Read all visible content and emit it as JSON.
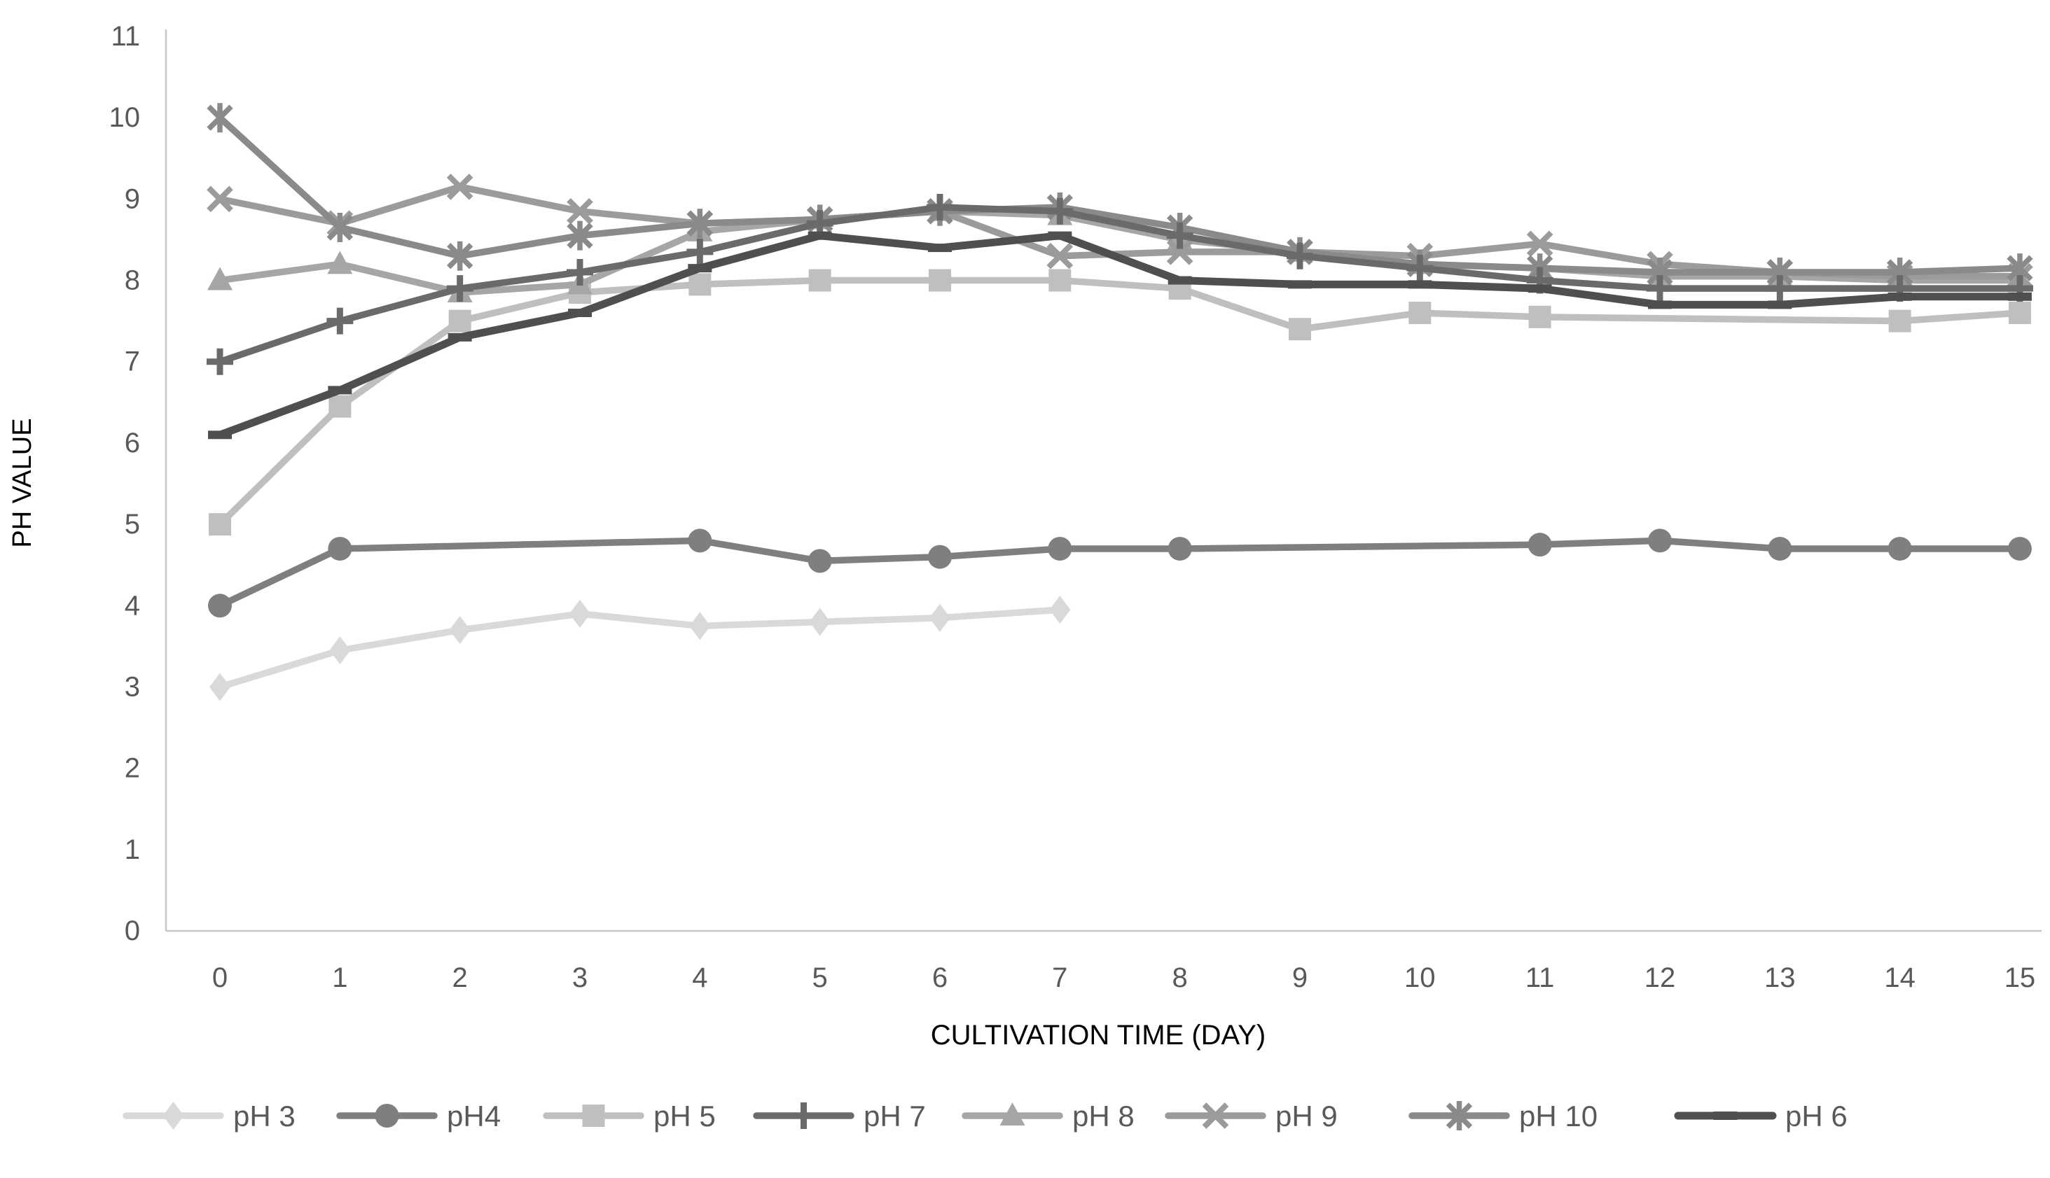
{
  "chart": {
    "text_color": "#595959",
    "axis_line_color": "#c6c6c6",
    "background": "#ffffff"
  },
  "chart_data": {
    "type": "line",
    "title": "",
    "xlabel": "CULTIVATION TIME (DAY)",
    "ylabel": "PH VALUE",
    "x": [
      0,
      1,
      2,
      3,
      4,
      5,
      6,
      7,
      8,
      9,
      10,
      11,
      12,
      13,
      14,
      15
    ],
    "x_tick_labels": [
      "0",
      "1",
      "2",
      "3",
      "4",
      "5",
      "6",
      "7",
      "8",
      "9",
      "10",
      "11",
      "12",
      "13",
      "14",
      "15"
    ],
    "y_ticks": [
      0,
      1,
      2,
      3,
      4,
      5,
      6,
      7,
      8,
      9,
      10,
      11
    ],
    "y_tick_labels": [
      "0",
      "1",
      "2",
      "3",
      "4",
      "5",
      "6",
      "7",
      "8",
      "9",
      "10",
      "11"
    ],
    "ylim": [
      0,
      11
    ],
    "xlim": [
      0,
      15
    ],
    "grid": false,
    "legend_position": "bottom",
    "series": [
      {
        "name": "pH 3",
        "marker": "diamond",
        "color": "#d9d9d9",
        "values": [
          3.0,
          3.45,
          3.7,
          3.9,
          3.75,
          3.8,
          3.85,
          3.95,
          null,
          null,
          null,
          null,
          null,
          null,
          null,
          null
        ]
      },
      {
        "name": "pH4",
        "marker": "circle",
        "color": "#7f7f7f",
        "values": [
          4.0,
          4.7,
          null,
          null,
          4.8,
          4.55,
          4.6,
          4.7,
          4.7,
          null,
          null,
          4.75,
          4.8,
          4.7,
          4.7,
          4.7
        ]
      },
      {
        "name": "pH 5",
        "marker": "square",
        "color": "#bfbfbf",
        "values": [
          5.0,
          6.45,
          7.5,
          7.85,
          7.95,
          8.0,
          8.0,
          8.0,
          7.9,
          7.4,
          7.6,
          7.55,
          null,
          null,
          7.5,
          7.6
        ]
      },
      {
        "name": "pH 7",
        "marker": "plus",
        "color": "#6a6a6a",
        "values": [
          7.0,
          7.5,
          7.9,
          8.1,
          8.35,
          8.7,
          8.9,
          8.85,
          8.55,
          8.3,
          8.15,
          8.0,
          7.9,
          7.9,
          7.9,
          7.9
        ]
      },
      {
        "name": "pH 8",
        "marker": "triangle",
        "color": "#a6a6a6",
        "values": [
          8.0,
          8.2,
          7.85,
          7.95,
          8.6,
          8.75,
          8.85,
          8.8,
          8.5,
          8.35,
          8.2,
          8.15,
          8.05,
          8.05,
          8.0,
          8.0
        ]
      },
      {
        "name": "pH 9",
        "marker": "x",
        "color": "#9b9b9b",
        "values": [
          9.0,
          8.7,
          9.15,
          8.85,
          8.7,
          8.75,
          8.85,
          8.3,
          8.35,
          8.35,
          8.3,
          8.45,
          8.2,
          8.1,
          8.05,
          8.05
        ]
      },
      {
        "name": "pH 10",
        "marker": "asterisk",
        "color": "#8a8a8a",
        "values": [
          10.0,
          8.65,
          8.3,
          8.55,
          8.7,
          8.75,
          8.85,
          8.9,
          8.65,
          8.35,
          8.2,
          8.15,
          8.1,
          8.1,
          8.1,
          8.15
        ]
      },
      {
        "name": "pH 6",
        "marker": "dash",
        "color": "#4f4f4f",
        "values": [
          6.1,
          6.65,
          7.3,
          7.6,
          8.15,
          8.55,
          8.4,
          8.55,
          8.0,
          7.95,
          7.95,
          7.9,
          7.7,
          7.7,
          7.8,
          7.8
        ]
      }
    ]
  }
}
